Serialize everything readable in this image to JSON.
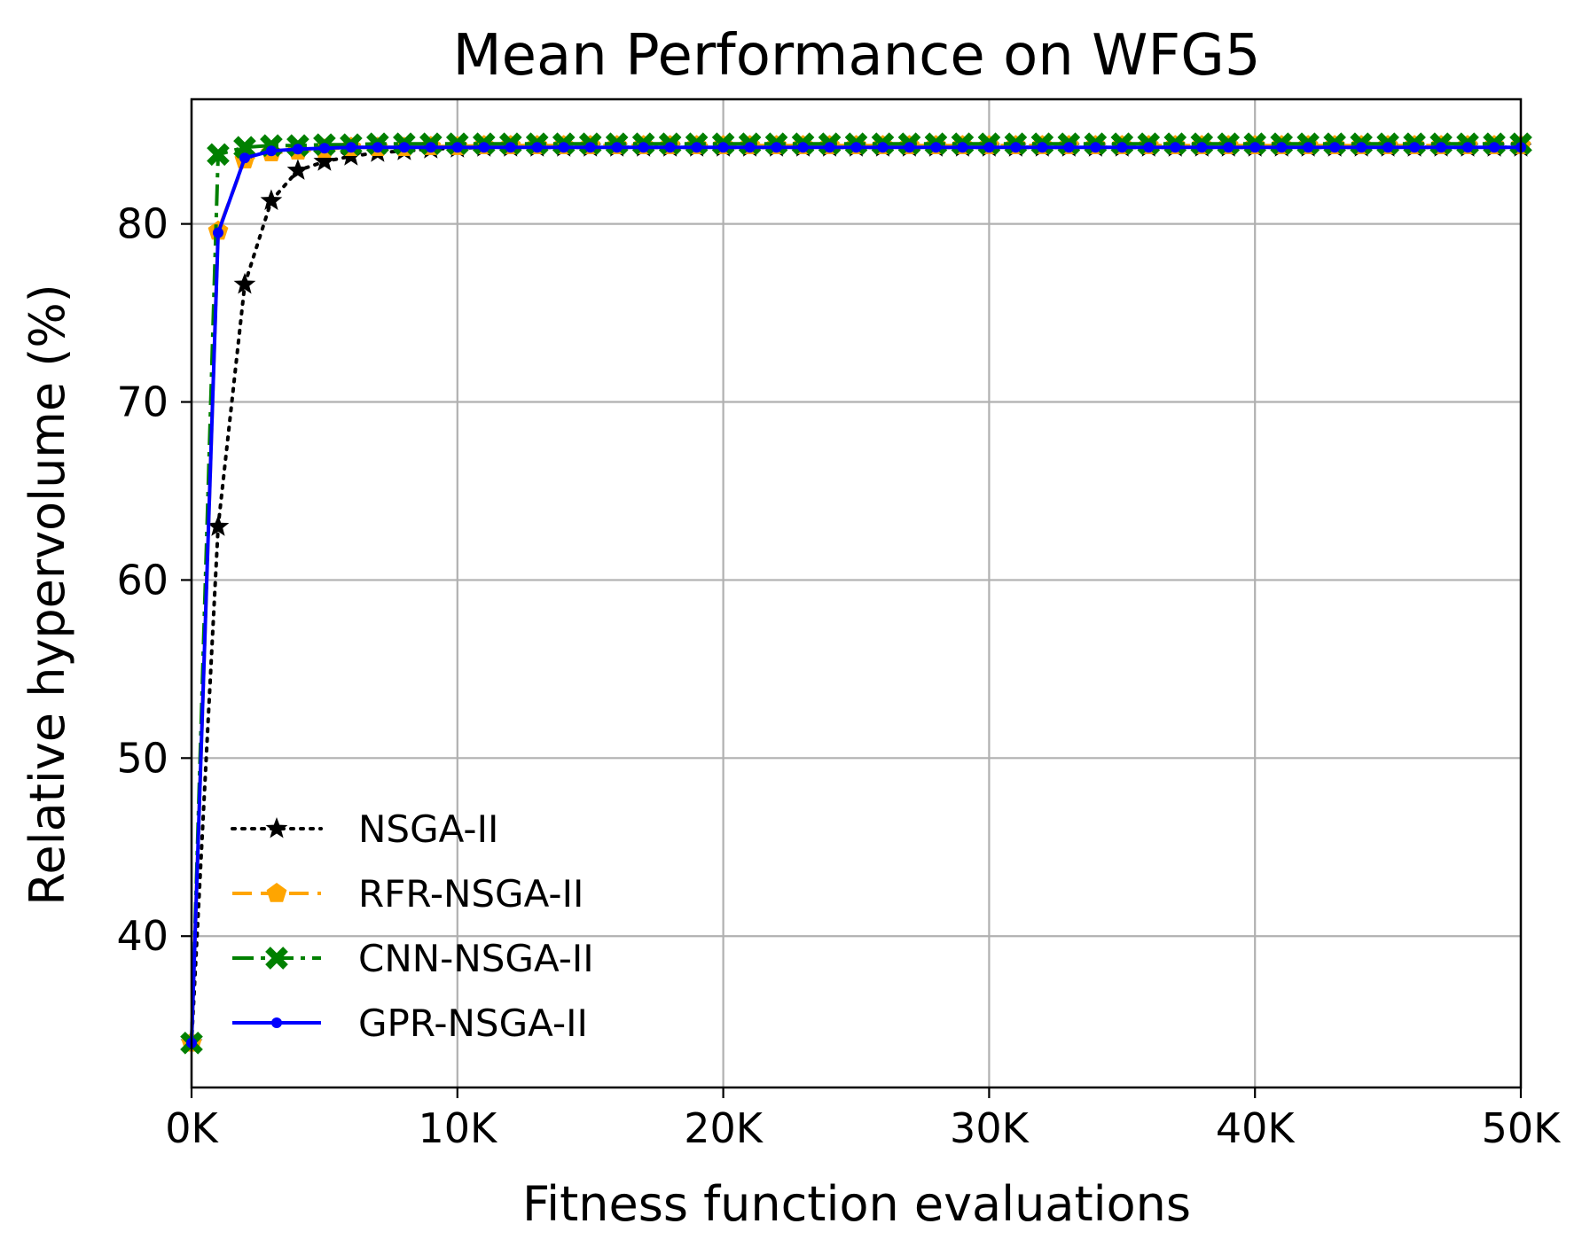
{
  "chart_data": {
    "type": "line",
    "title": "Mean Performance on WFG5",
    "xlabel": "Fitness function evaluations",
    "ylabel": "Relative hypervolume (%)",
    "xlim": [
      0,
      50000
    ],
    "ylim": [
      31.5,
      87
    ],
    "grid": true,
    "legend_position": "lower-left",
    "x_ticks": [
      0,
      10000,
      20000,
      30000,
      40000,
      50000
    ],
    "x_tick_labels": [
      "0K",
      "10K",
      "20K",
      "30K",
      "40K",
      "50K"
    ],
    "y_ticks": [
      40,
      50,
      60,
      70,
      80
    ],
    "y_tick_labels": [
      "40",
      "50",
      "60",
      "70",
      "80"
    ],
    "x_step": 1000,
    "num_points": 51,
    "series": [
      {
        "name": "NSGA-II",
        "color": "#000000",
        "line_style": "dotted",
        "marker": "star",
        "values": [
          34,
          63,
          76.6,
          81.3,
          83,
          83.5,
          83.8,
          84,
          84.1,
          84.2,
          84.25,
          84.3,
          84.3,
          84.3,
          84.3,
          84.3,
          84.3,
          84.3,
          84.3,
          84.3,
          84.3,
          84.3,
          84.3,
          84.3,
          84.3,
          84.3,
          84.3,
          84.3,
          84.3,
          84.3,
          84.3,
          84.3,
          84.3,
          84.3,
          84.3,
          84.3,
          84.3,
          84.3,
          84.3,
          84.3,
          84.3,
          84.3,
          84.3,
          84.3,
          84.3,
          84.3,
          84.3,
          84.3,
          84.3,
          84.3,
          84.3
        ]
      },
      {
        "name": "RFR-NSGA-II",
        "color": "#FFA500",
        "line_style": "dashed",
        "marker": "pentagon",
        "values": [
          34,
          79.6,
          83.6,
          84,
          84.1,
          84.2,
          84.3,
          84.3,
          84.3,
          84.35,
          84.35,
          84.4,
          84.4,
          84.4,
          84.4,
          84.4,
          84.4,
          84.4,
          84.4,
          84.4,
          84.4,
          84.4,
          84.4,
          84.4,
          84.4,
          84.4,
          84.4,
          84.4,
          84.4,
          84.4,
          84.4,
          84.4,
          84.4,
          84.4,
          84.4,
          84.4,
          84.4,
          84.4,
          84.4,
          84.4,
          84.4,
          84.4,
          84.4,
          84.4,
          84.4,
          84.4,
          84.4,
          84.4,
          84.4,
          84.4,
          84.4
        ]
      },
      {
        "name": "CNN-NSGA-II",
        "color": "#008000",
        "line_style": "dashdot",
        "marker": "x",
        "values": [
          34,
          83.9,
          84.3,
          84.4,
          84.4,
          84.45,
          84.45,
          84.5,
          84.5,
          84.5,
          84.5,
          84.5,
          84.5,
          84.5,
          84.5,
          84.5,
          84.5,
          84.5,
          84.5,
          84.5,
          84.5,
          84.5,
          84.5,
          84.5,
          84.5,
          84.5,
          84.5,
          84.5,
          84.5,
          84.5,
          84.5,
          84.5,
          84.5,
          84.5,
          84.5,
          84.5,
          84.5,
          84.5,
          84.5,
          84.5,
          84.5,
          84.5,
          84.5,
          84.5,
          84.5,
          84.5,
          84.5,
          84.5,
          84.5,
          84.5,
          84.5
        ]
      },
      {
        "name": "GPR-NSGA-II",
        "color": "#0000FF",
        "line_style": "solid",
        "marker": "dot",
        "values": [
          34,
          79.5,
          83.7,
          84.1,
          84.2,
          84.25,
          84.3,
          84.3,
          84.3,
          84.3,
          84.3,
          84.3,
          84.3,
          84.3,
          84.3,
          84.3,
          84.3,
          84.3,
          84.3,
          84.3,
          84.3,
          84.3,
          84.3,
          84.3,
          84.3,
          84.3,
          84.3,
          84.3,
          84.3,
          84.3,
          84.3,
          84.3,
          84.3,
          84.3,
          84.3,
          84.3,
          84.3,
          84.3,
          84.3,
          84.3,
          84.3,
          84.3,
          84.3,
          84.3,
          84.3,
          84.3,
          84.3,
          84.3,
          84.3,
          84.3,
          84.3
        ]
      }
    ]
  }
}
